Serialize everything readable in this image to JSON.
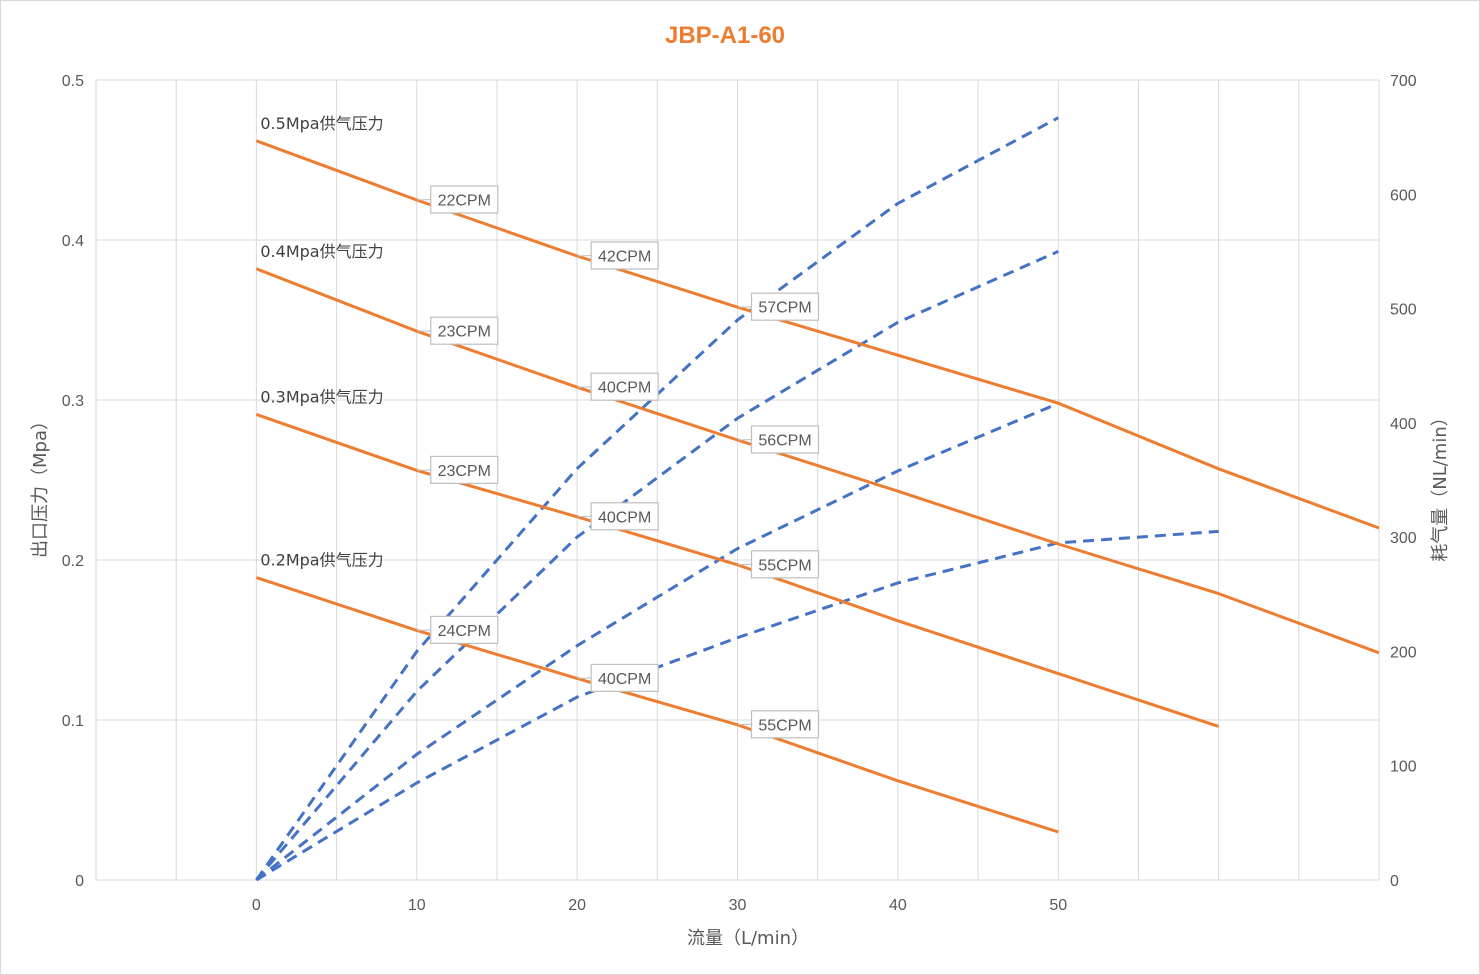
{
  "colors": {
    "pressure": "#ED7D31",
    "air": "#4472C4",
    "grid": "#D9D9D9",
    "text": "#595959",
    "title": "#ED7D31"
  },
  "chart_data": {
    "type": "line",
    "title": "JBP-A1-60",
    "xlabel": "流量（L/min）",
    "ylabel": "出口压力（Mpa）",
    "y2label": "耗气量（NL/min）",
    "xlim": [
      -10,
      70
    ],
    "ylim": [
      0,
      0.5
    ],
    "y2lim": [
      0,
      700
    ],
    "grid": true,
    "x_tick_step": 5,
    "x_tick_labels": [
      "0",
      "10",
      "20",
      "30",
      "40",
      "50"
    ],
    "y_ticks": [
      "0",
      "0.1",
      "0.2",
      "0.3",
      "0.4",
      "0.5"
    ],
    "y2_ticks": [
      "0",
      "100",
      "200",
      "300",
      "400",
      "500",
      "600",
      "700"
    ],
    "pressure_series": [
      {
        "name": "0.5Mpa供气压力",
        "x": [
          0,
          10,
          20,
          30,
          40,
          50,
          60,
          70
        ],
        "y": [
          0.462,
          0.425,
          0.39,
          0.358,
          0.328,
          0.298,
          0.257,
          0.22
        ]
      },
      {
        "name": "0.4Mpa供气压力",
        "x": [
          0,
          10,
          20,
          30,
          40,
          50,
          60,
          70
        ],
        "y": [
          0.382,
          0.343,
          0.308,
          0.275,
          0.243,
          0.21,
          0.179,
          0.142
        ]
      },
      {
        "name": "0.3Mpa供气压力",
        "x": [
          0,
          10,
          20,
          30,
          40,
          50,
          60
        ],
        "y": [
          0.291,
          0.256,
          0.227,
          0.197,
          0.162,
          0.129,
          0.096
        ]
      },
      {
        "name": "0.2Mpa供气压力",
        "x": [
          0,
          10,
          20,
          30,
          40,
          50
        ],
        "y": [
          0.189,
          0.156,
          0.126,
          0.097,
          0.062,
          0.03
        ]
      }
    ],
    "air_series": [
      {
        "x": [
          0,
          10,
          20,
          30,
          40,
          50
        ],
        "y": [
          0,
          200,
          360,
          490,
          592,
          667
        ]
      },
      {
        "x": [
          0,
          10,
          20,
          30,
          40,
          50
        ],
        "y": [
          0,
          165,
          300,
          404,
          488,
          550
        ]
      },
      {
        "x": [
          0,
          10,
          20,
          30,
          40,
          50
        ],
        "y": [
          0,
          110,
          205,
          290,
          358,
          417
        ]
      },
      {
        "x": [
          0,
          10,
          20,
          30,
          40,
          50,
          60
        ],
        "y": [
          0,
          85,
          160,
          212,
          260,
          295,
          305
        ]
      }
    ],
    "cpm_labels": [
      {
        "text": "22CPM",
        "x": 10,
        "y": 0.425
      },
      {
        "text": "42CPM",
        "x": 20,
        "y": 0.39
      },
      {
        "text": "57CPM",
        "x": 30,
        "y": 0.358
      },
      {
        "text": "23CPM",
        "x": 10,
        "y": 0.343
      },
      {
        "text": "40CPM",
        "x": 20,
        "y": 0.308
      },
      {
        "text": "56CPM",
        "x": 30,
        "y": 0.275
      },
      {
        "text": "23CPM",
        "x": 10,
        "y": 0.256
      },
      {
        "text": "40CPM",
        "x": 20,
        "y": 0.227
      },
      {
        "text": "55CPM",
        "x": 30,
        "y": 0.197
      },
      {
        "text": "24CPM",
        "x": 10,
        "y": 0.156
      },
      {
        "text": "40CPM",
        "x": 20,
        "y": 0.126
      },
      {
        "text": "55CPM",
        "x": 30,
        "y": 0.097
      }
    ]
  }
}
